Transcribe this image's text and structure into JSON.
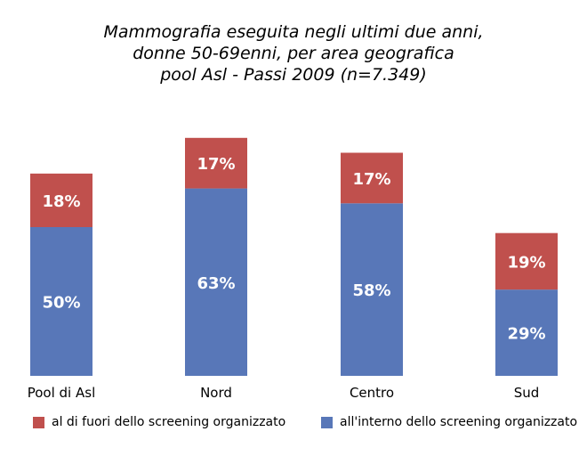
{
  "chart_data": {
    "type": "bar",
    "stacked": true,
    "title": [
      "Mammografia eseguita negli ultimi due anni,",
      "donne 50-69enni, per area geografica",
      "pool Asl - Passi 2009 (n=7.349)"
    ],
    "categories": [
      "Pool di Asl",
      "Nord",
      "Centro",
      "Sud"
    ],
    "series": [
      {
        "name": "all'interno dello screening organizzato",
        "values": [
          50,
          63,
          58,
          29
        ],
        "labels": [
          "50%",
          "63%",
          "58%",
          "29%"
        ],
        "color": "#5877B8"
      },
      {
        "name": "al di fuori dello screening organizzato",
        "values": [
          18,
          17,
          17,
          19
        ],
        "labels": [
          "18%",
          "17%",
          "17%",
          "19%"
        ],
        "color": "#C0504D"
      }
    ],
    "legend_order": [
      1,
      0
    ],
    "legend_placement": "bottom",
    "ylim": [
      0,
      80
    ],
    "grid": false
  }
}
